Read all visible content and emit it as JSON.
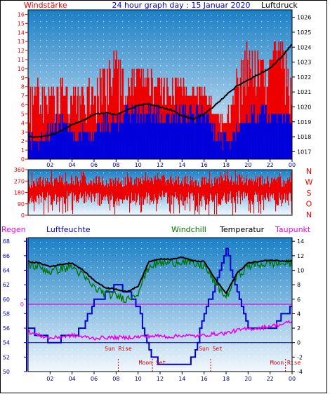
{
  "header": {
    "left_label": "Windstärke",
    "title": "24 hour graph day : 15 Januar 2020",
    "right_label": "Luftdruck"
  },
  "colors": {
    "wind": "#ee0000",
    "gust": "#0000dd",
    "pressure": "#000000",
    "direction": "#ee0000",
    "humidity": "#0000cc",
    "temperature": "#000000",
    "windchill": "#007700",
    "dewpoint": "#ee00ee",
    "zero_line": "#ee00ee",
    "marker": "#cc0000",
    "plot_top": "#1a7fc6",
    "plot_bottom": "#f2f8fd"
  },
  "chart_data": [
    {
      "type": "bar",
      "name": "Windstärke / Luftdruck",
      "x_ticks": [
        "02",
        "04",
        "06",
        "08",
        "10",
        "12",
        "14",
        "16",
        "18",
        "20",
        "22",
        "00"
      ],
      "y_left": {
        "label": "Windstärke",
        "ticks": [
          "0",
          "1",
          "2",
          "3",
          "4",
          "5",
          "6",
          "7",
          "8",
          "9",
          "10",
          "11",
          "12",
          "13",
          "14",
          "15",
          "16"
        ],
        "ylim": [
          0,
          16.5
        ]
      },
      "y_right": {
        "label": "Luftdruck",
        "ticks": [
          "1017",
          "1018",
          "1019",
          "1020",
          "1021",
          "1022",
          "1023",
          "1024",
          "1025",
          "1026"
        ],
        "ylim": [
          1016.5,
          1026.5
        ]
      },
      "hours": [
        0,
        1,
        2,
        3,
        4,
        5,
        6,
        7,
        8,
        9,
        10,
        11,
        12,
        13,
        14,
        15,
        16,
        17,
        18,
        19,
        20,
        21,
        22,
        23,
        24
      ],
      "wind_peak": [
        9,
        8,
        7,
        9,
        7,
        8,
        8,
        10,
        12,
        9,
        10,
        9,
        8,
        9,
        8,
        8,
        7,
        5,
        4,
        9,
        13,
        12,
        11,
        13,
        9
      ],
      "gust": [
        2,
        2,
        3,
        4,
        3,
        3,
        3,
        4,
        4,
        5,
        5,
        5,
        5,
        5,
        5,
        5,
        5,
        3,
        2,
        3,
        5,
        5,
        5,
        5,
        4
      ],
      "pressure": [
        1018.0,
        1018.0,
        1018.1,
        1018.4,
        1018.8,
        1019.1,
        1019.5,
        1019.6,
        1019.5,
        1019.8,
        1020.1,
        1020.2,
        1020.0,
        1019.8,
        1019.4,
        1019.2,
        1019.5,
        1020.1,
        1020.8,
        1021.4,
        1021.8,
        1022.2,
        1022.6,
        1023.3,
        1024.2
      ]
    },
    {
      "type": "bar",
      "name": "Windrichtung",
      "y_ticks": [
        "0",
        "90",
        "180",
        "270",
        "360"
      ],
      "ylim": [
        0,
        360
      ],
      "direction_labels": [
        "N",
        "W",
        "S",
        "O",
        "N"
      ],
      "direction_mean": [
        190,
        200,
        205,
        210,
        215,
        210,
        205,
        200,
        195,
        200,
        205,
        210,
        215,
        210,
        205,
        200,
        195,
        200,
        210,
        215,
        210,
        205,
        200,
        200,
        205
      ]
    },
    {
      "type": "line",
      "name": "Temperatur / Luftfeuchte",
      "labels": {
        "regen": "Regen",
        "luftfeuchte": "Luftfeuchte",
        "windchill": "Windchill",
        "temperatur": "Temperatur",
        "taupunkt": "Taupunkt"
      },
      "x_ticks": [
        "02",
        "04",
        "06",
        "08",
        "10",
        "12",
        "14",
        "16",
        "18",
        "20",
        "22",
        "00"
      ],
      "y_left": {
        "ticks": [
          "50",
          "52",
          "54",
          "56",
          "58",
          "60",
          "62",
          "64",
          "66",
          "68"
        ],
        "ylim": [
          50,
          68.5
        ]
      },
      "y_right": {
        "ticks": [
          "-4",
          "-2",
          "0",
          "2",
          "4",
          "6",
          "8",
          "10",
          "12",
          "14"
        ],
        "ylim": [
          -4,
          14.5
        ]
      },
      "regen_zero_label": "0",
      "hours": [
        0,
        1,
        2,
        3,
        4,
        5,
        6,
        7,
        8,
        9,
        10,
        11,
        12,
        13,
        14,
        15,
        16,
        17,
        18,
        19,
        20,
        21,
        22,
        23,
        24
      ],
      "temperature": [
        11.2,
        11.0,
        10.5,
        10.8,
        11.0,
        10.0,
        8.6,
        7.6,
        7.4,
        7.0,
        7.8,
        11.2,
        11.6,
        11.5,
        11.8,
        11.3,
        11.2,
        8.8,
        6.8,
        9.6,
        11.0,
        11.2,
        11.4,
        11.3,
        11.3
      ],
      "windchill": [
        10.8,
        10.4,
        9.8,
        10.2,
        10.5,
        9.2,
        7.6,
        6.8,
        6.5,
        6.0,
        7.0,
        10.6,
        11.0,
        11.0,
        11.3,
        10.8,
        10.6,
        8.2,
        6.3,
        9.2,
        10.6,
        10.8,
        11.0,
        10.9,
        11.0
      ],
      "dewpoint": [
        1.5,
        1.0,
        0.6,
        0.8,
        1.0,
        0.8,
        0.6,
        0.7,
        0.7,
        0.7,
        0.8,
        0.9,
        0.9,
        0.8,
        1.0,
        0.9,
        1.0,
        1.2,
        1.3,
        1.7,
        1.9,
        2.0,
        2.3,
        2.5,
        2.9
      ],
      "humidity": [
        56.0,
        54.8,
        54.3,
        54.5,
        55.0,
        56.0,
        60.0,
        60.5,
        62.0,
        61.0,
        59.0,
        52.5,
        51.0,
        50.7,
        50.7,
        52.0,
        58.0,
        62.0,
        67.0,
        60.5,
        56.0,
        55.5,
        55.5,
        57.5,
        59.0
      ],
      "events": [
        {
          "label": "Sun Rise",
          "hour": 8.2,
          "row": 0
        },
        {
          "label": "Moon Set",
          "hour": 11.3,
          "row": 1
        },
        {
          "label": "Sun Set",
          "hour": 16.6,
          "row": 0
        },
        {
          "label": "Moon Rise",
          "hour": 23.4,
          "row": 1
        }
      ]
    }
  ]
}
